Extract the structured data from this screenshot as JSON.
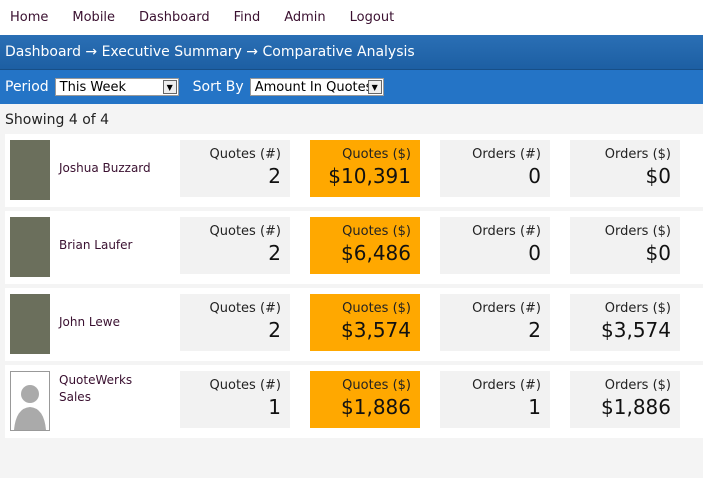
{
  "nav": [
    "Home",
    "Mobile",
    "Dashboard",
    "Find",
    "Admin",
    "Logout"
  ],
  "breadcrumb": "Dashboard → Executive Summary → Comparative Analysis",
  "filters": {
    "period_label": "Period",
    "period_value": "This Week",
    "sort_label": "Sort By",
    "sort_value": "Amount In Quotes"
  },
  "showing": "Showing 4 of 4",
  "colors": {
    "highlight": "#ffa800",
    "header": "#2474c6"
  },
  "labels": [
    "Quotes (#)",
    "Quotes ($)",
    "Orders (#)",
    "Orders ($)"
  ],
  "rows": [
    {
      "name": "Joshua Buzzard",
      "values": [
        "2",
        "$10,391",
        "0",
        "$0"
      ],
      "photo": "person-photo"
    },
    {
      "name": "Brian Laufer",
      "values": [
        "2",
        "$6,486",
        "0",
        "$0"
      ],
      "photo": "person-photo"
    },
    {
      "name": "John Lewe",
      "values": [
        "2",
        "$3,574",
        "2",
        "$3,574"
      ],
      "photo": "person-photo"
    },
    {
      "name": "QuoteWerks Sales",
      "values": [
        "1",
        "$1,886",
        "1",
        "$1,886"
      ],
      "photo": "placeholder-avatar-icon"
    }
  ]
}
